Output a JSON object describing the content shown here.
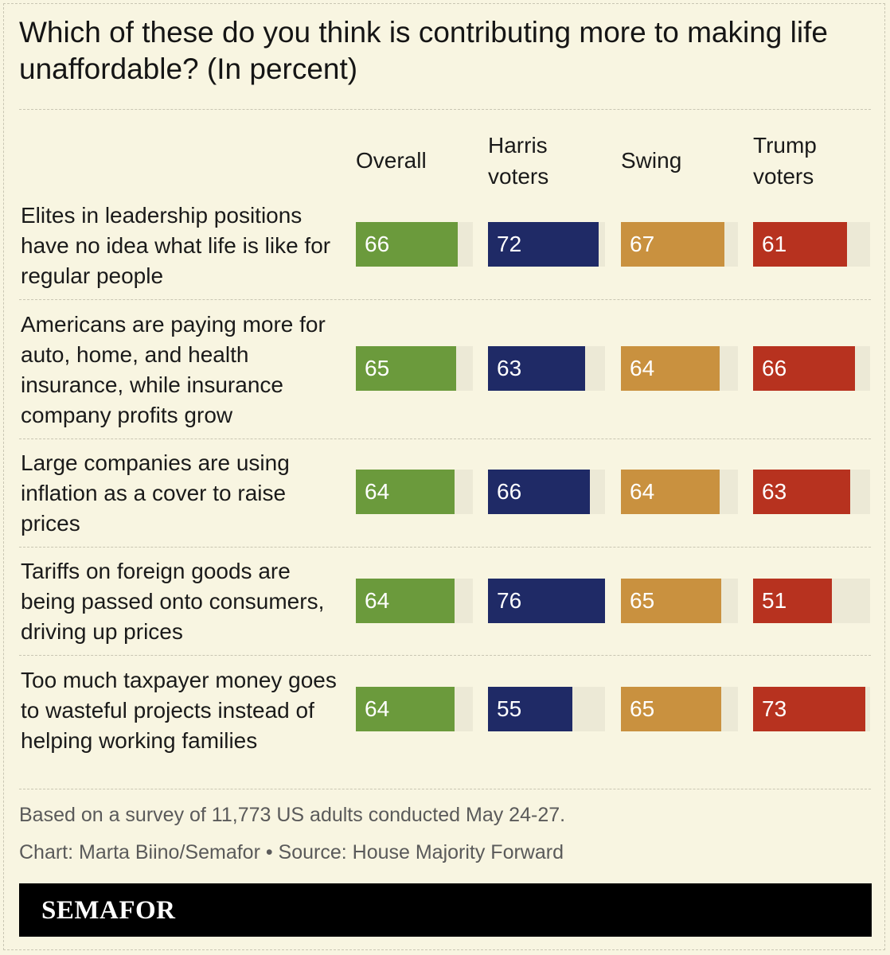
{
  "chart_data": {
    "type": "bar",
    "title": "Which of these do you think is contributing more to making life unaffordable? (In percent)",
    "xlabel": "",
    "ylabel": "",
    "ylim": [
      0,
      100
    ],
    "columns": [
      {
        "key": "overall",
        "label": "Overall",
        "color": "#6b9a3c"
      },
      {
        "key": "harris",
        "label": "Harris\nvoters",
        "color": "#1f2a66"
      },
      {
        "key": "swing",
        "label": "Swing",
        "color": "#c9913f"
      },
      {
        "key": "trump",
        "label": "Trump\nvoters",
        "color": "#b7321f"
      }
    ],
    "categories": [
      "Elites in leadership positions have no idea what life is like for regular people",
      "Americans are paying more for auto, home, and health insurance, while insurance company profits grow",
      "Large companies are using inflation as a cover to raise prices",
      "Tariffs on foreign goods are being passed onto consumers, driving up prices",
      "Too much taxpayer money goes to wasteful projects instead of helping working families"
    ],
    "series": [
      {
        "name": "Overall",
        "values": [
          66,
          65,
          64,
          64,
          64
        ]
      },
      {
        "name": "Harris voters",
        "values": [
          72,
          63,
          66,
          76,
          55
        ]
      },
      {
        "name": "Swing",
        "values": [
          67,
          64,
          64,
          65,
          65
        ]
      },
      {
        "name": "Trump voters",
        "values": [
          61,
          66,
          63,
          51,
          73
        ]
      }
    ],
    "bar_track_max": 76
  },
  "footer": {
    "note": "Based on a survey of 11,773 US adults conducted May 24-27.",
    "credit": "Chart: Marta Biino/Semafor • Source: House Majority Forward"
  },
  "brand": {
    "name": "SEMAFOR"
  },
  "colors": {
    "background": "#f8f5e1",
    "track": "#ece9d6"
  }
}
